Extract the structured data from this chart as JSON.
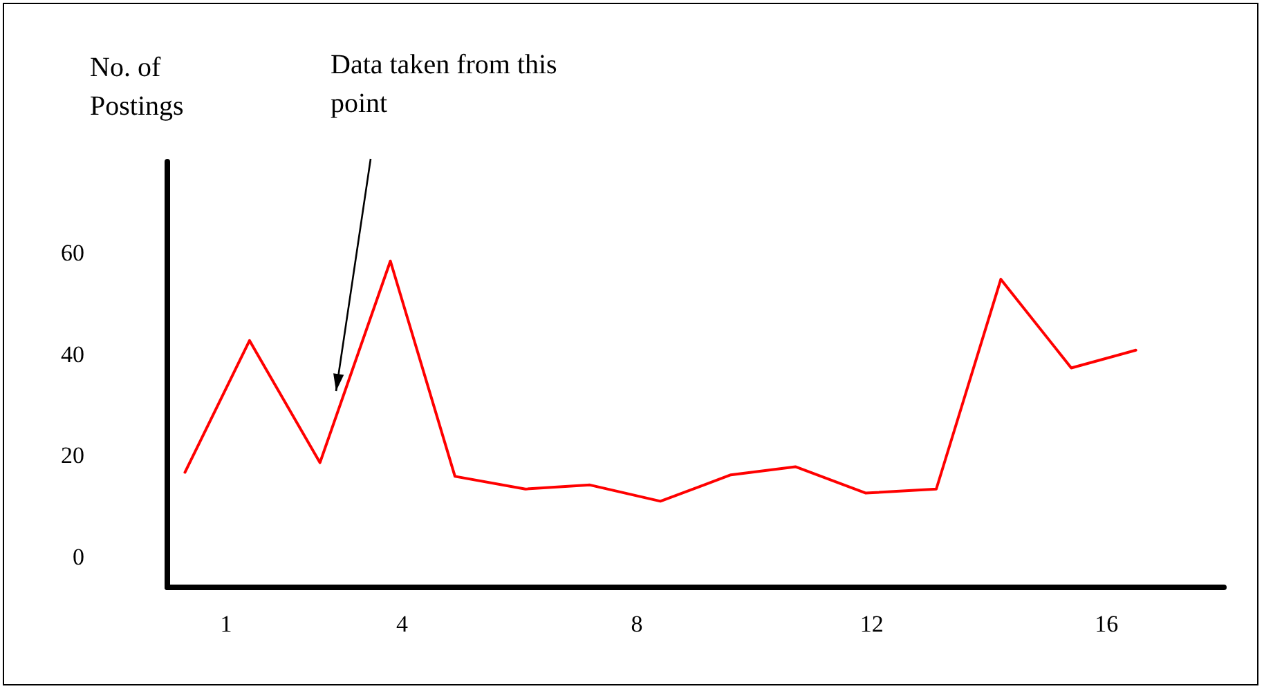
{
  "chart_data": {
    "type": "line",
    "ylabel": "No. of Postings",
    "x": [
      0.3,
      1.4,
      2.6,
      3.8,
      4.9,
      6.1,
      7.2,
      8.4,
      9.6,
      10.7,
      11.9,
      13.1,
      14.2,
      15.4,
      16.5
    ],
    "series": [
      {
        "color": "#ff0000",
        "values": [
          16.7,
          42.7,
          18.6,
          58.4,
          15.9,
          13.4,
          14.2,
          11.0,
          16.2,
          17.8,
          12.6,
          13.4,
          54.8,
          37.3,
          40.8
        ]
      }
    ],
    "xlim": [
      0,
      18
    ],
    "xticks": [
      1,
      4,
      8,
      12,
      16
    ],
    "ylim": [
      -6,
      78
    ],
    "yticks": [
      0,
      20,
      40,
      60
    ],
    "annotations": [
      "Data taken from this point"
    ],
    "grid": false,
    "marker": "none",
    "line_style": "solid"
  }
}
